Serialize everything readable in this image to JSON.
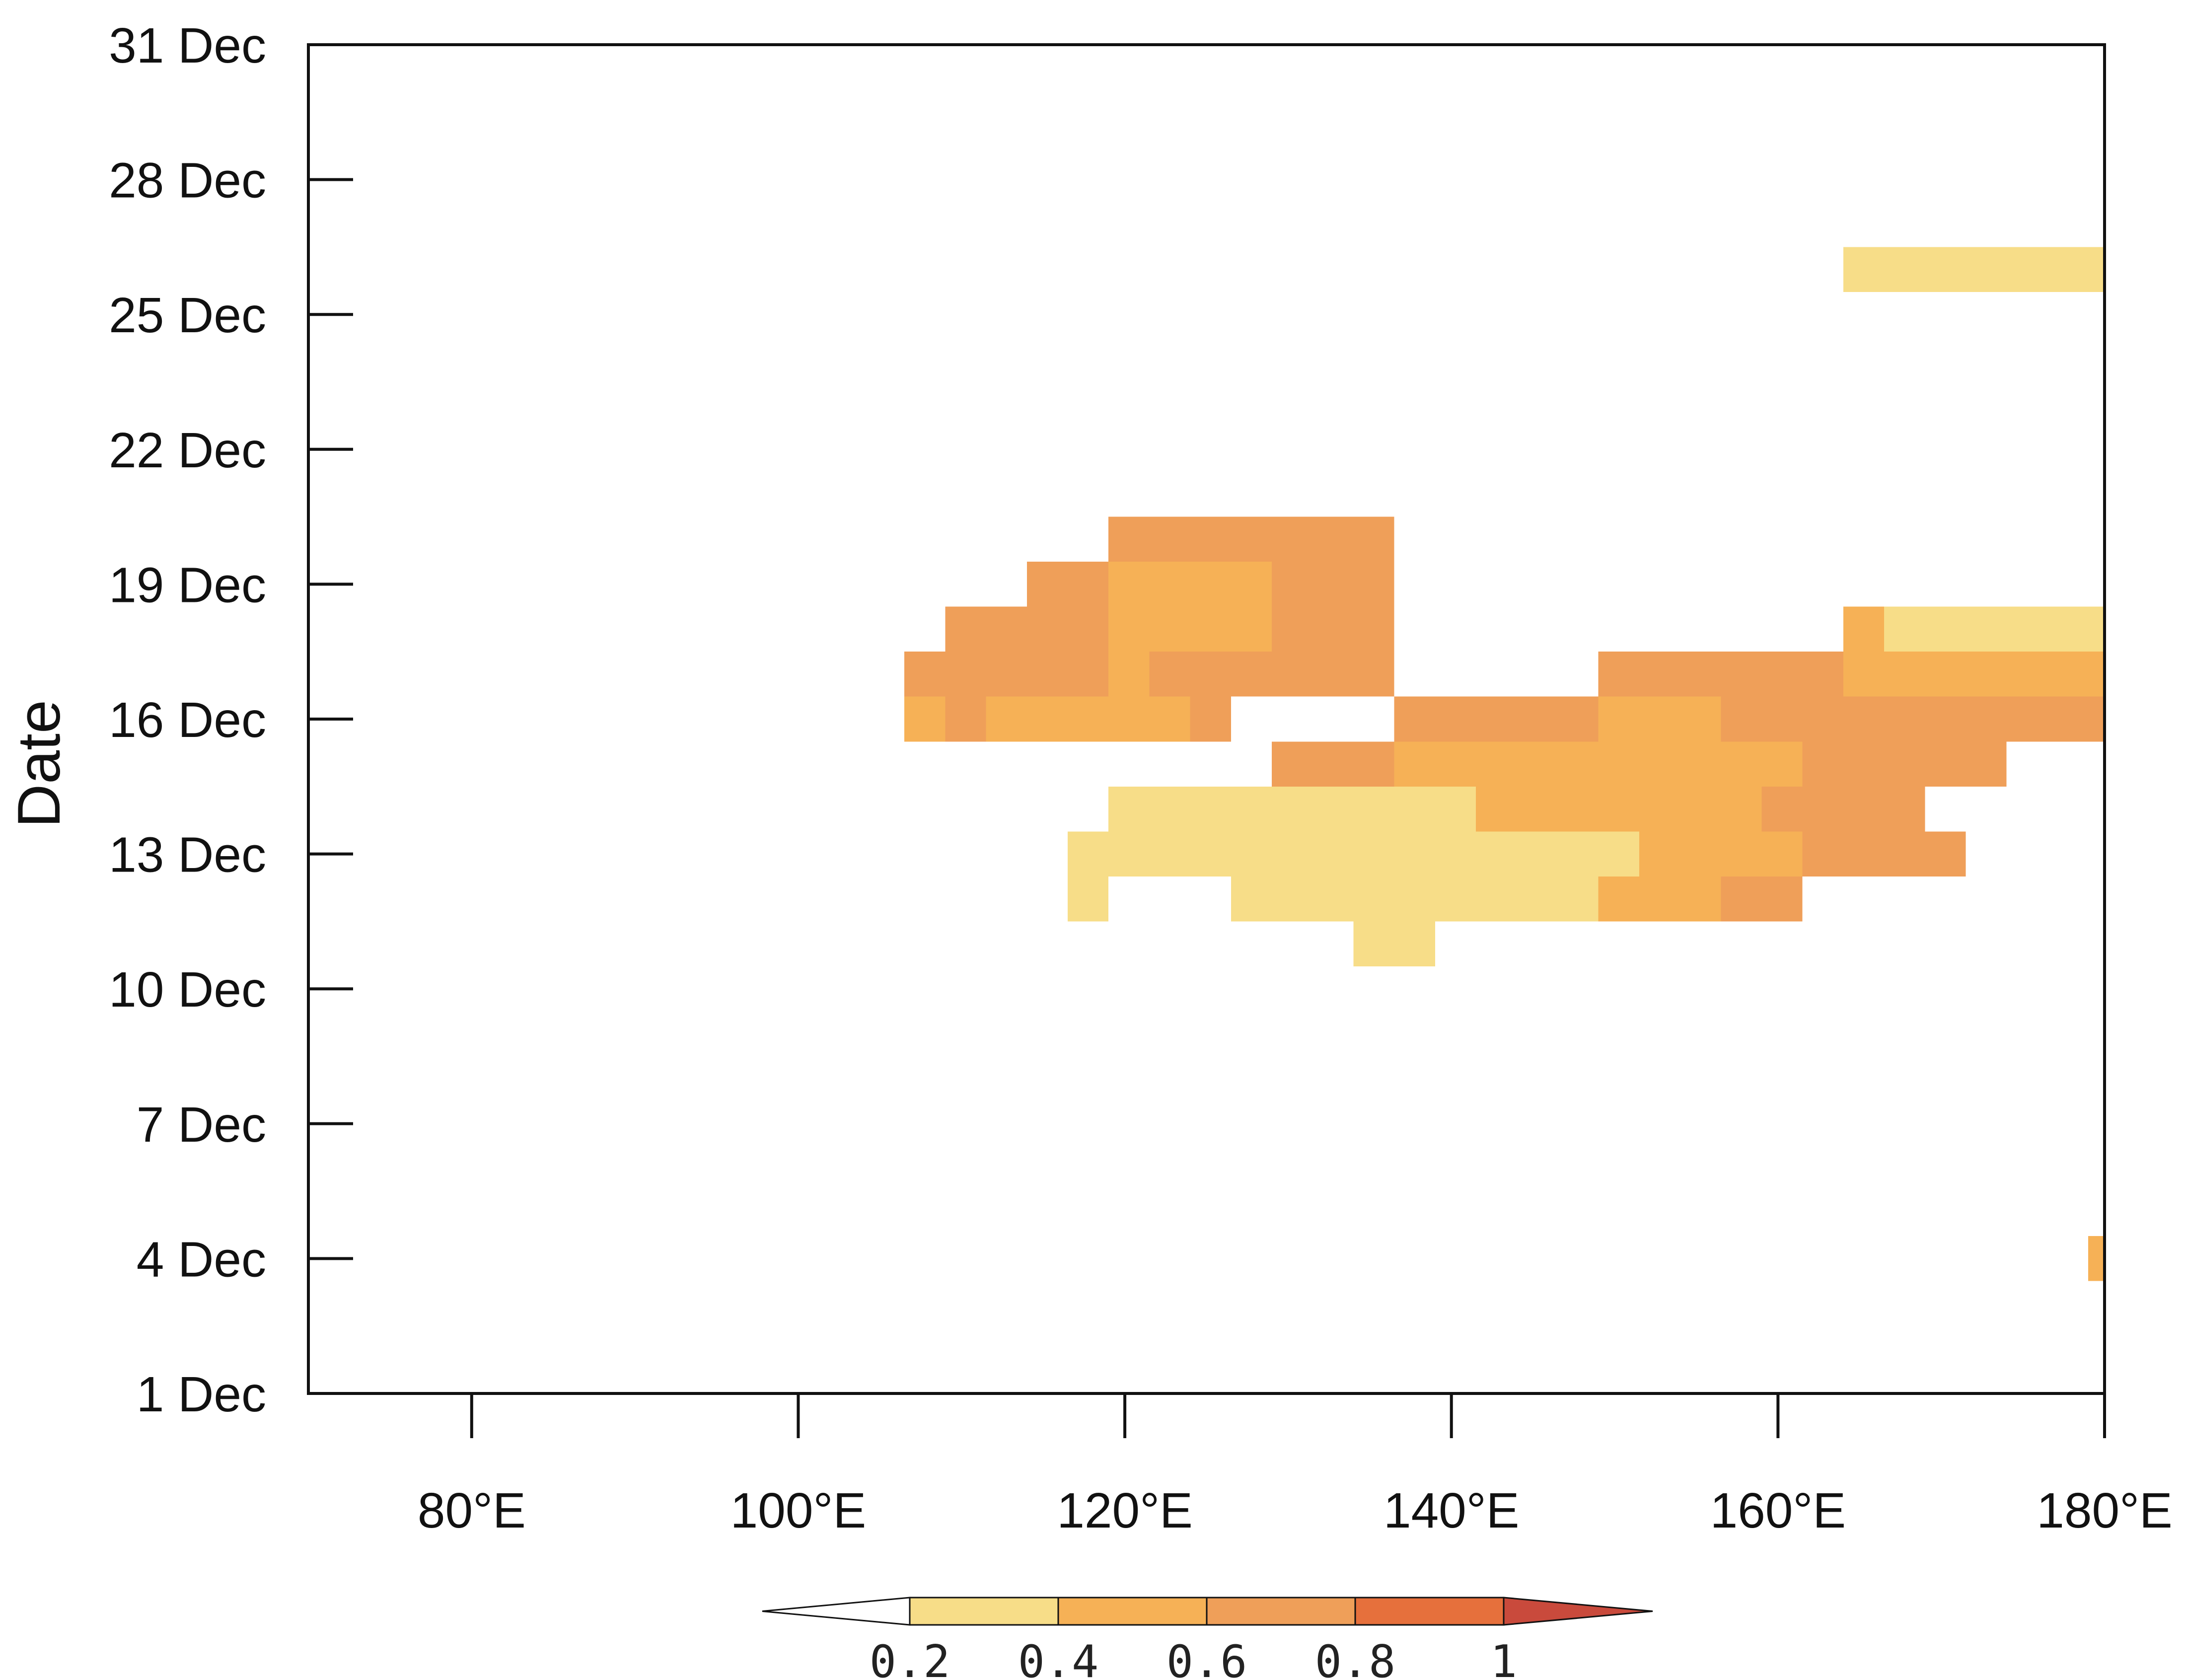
{
  "chart_data": {
    "type": "heatmap",
    "title": "",
    "xlabel": "",
    "ylabel": "Date",
    "x_unit": "degrees E",
    "xlim": [
      70,
      180
    ],
    "x_ticks": [
      {
        "value": 80,
        "label": "80°E"
      },
      {
        "value": 100,
        "label": "100°E"
      },
      {
        "value": 120,
        "label": "120°E"
      },
      {
        "value": 140,
        "label": "140°E"
      },
      {
        "value": 160,
        "label": "160°E"
      },
      {
        "value": 180,
        "label": "180°E"
      }
    ],
    "ylim": [
      "1 Dec",
      "31 Dec"
    ],
    "y_ticks": [
      {
        "value": 1,
        "label": "1 Dec"
      },
      {
        "value": 4,
        "label": "4 Dec"
      },
      {
        "value": 7,
        "label": "7 Dec"
      },
      {
        "value": 10,
        "label": "10 Dec"
      },
      {
        "value": 13,
        "label": "13 Dec"
      },
      {
        "value": 16,
        "label": "16 Dec"
      },
      {
        "value": 19,
        "label": "19 Dec"
      },
      {
        "value": 22,
        "label": "22 Dec"
      },
      {
        "value": 25,
        "label": "25 Dec"
      },
      {
        "value": 28,
        "label": "28 Dec"
      },
      {
        "value": 31,
        "label": "31 Dec"
      }
    ],
    "grid": false,
    "legend": "colorbar-bottom",
    "colorbar": {
      "levels": [
        "0.2",
        "0.4",
        "0.6",
        "0.8",
        "1"
      ],
      "colors": [
        "#ffffff",
        "#f7dd88",
        "#f6b156",
        "#ef9f59",
        "#e6703c",
        "#c94a3c"
      ]
    },
    "cells": [
      {
        "lon_start": 164,
        "lon_end": 180,
        "day": 26,
        "bin": 1
      },
      {
        "lon_start": 119,
        "lon_end": 136.5,
        "day": 20,
        "bin": 3
      },
      {
        "lon_start": 114,
        "lon_end": 119,
        "day": 19,
        "bin": 3
      },
      {
        "lon_start": 119,
        "lon_end": 129,
        "day": 19,
        "bin": 2
      },
      {
        "lon_start": 129,
        "lon_end": 136.5,
        "day": 19,
        "bin": 3
      },
      {
        "lon_start": 109,
        "lon_end": 119,
        "day": 18,
        "bin": 3
      },
      {
        "lon_start": 119,
        "lon_end": 129,
        "day": 18,
        "bin": 2
      },
      {
        "lon_start": 129,
        "lon_end": 136.5,
        "day": 18,
        "bin": 3
      },
      {
        "lon_start": 164,
        "lon_end": 166.5,
        "day": 18,
        "bin": 2
      },
      {
        "lon_start": 166.5,
        "lon_end": 180,
        "day": 18,
        "bin": 1
      },
      {
        "lon_start": 106.5,
        "lon_end": 119,
        "day": 17,
        "bin": 3
      },
      {
        "lon_start": 119,
        "lon_end": 121.5,
        "day": 17,
        "bin": 2
      },
      {
        "lon_start": 121.5,
        "lon_end": 136.5,
        "day": 17,
        "bin": 3
      },
      {
        "lon_start": 149,
        "lon_end": 164,
        "day": 17,
        "bin": 3
      },
      {
        "lon_start": 164,
        "lon_end": 180,
        "day": 17,
        "bin": 2
      },
      {
        "lon_start": 106.5,
        "lon_end": 109,
        "day": 16,
        "bin": 2
      },
      {
        "lon_start": 109,
        "lon_end": 111.5,
        "day": 16,
        "bin": 3
      },
      {
        "lon_start": 111.5,
        "lon_end": 124,
        "day": 16,
        "bin": 2
      },
      {
        "lon_start": 124,
        "lon_end": 126.5,
        "day": 16,
        "bin": 3
      },
      {
        "lon_start": 136.5,
        "lon_end": 149,
        "day": 16,
        "bin": 3
      },
      {
        "lon_start": 149,
        "lon_end": 156.5,
        "day": 16,
        "bin": 2
      },
      {
        "lon_start": 156.5,
        "lon_end": 180,
        "day": 16,
        "bin": 3
      },
      {
        "lon_start": 129,
        "lon_end": 136.5,
        "day": 15,
        "bin": 3
      },
      {
        "lon_start": 136.5,
        "lon_end": 161.5,
        "day": 15,
        "bin": 2
      },
      {
        "lon_start": 161.5,
        "lon_end": 174,
        "day": 15,
        "bin": 3
      },
      {
        "lon_start": 119,
        "lon_end": 141.5,
        "day": 14,
        "bin": 1
      },
      {
        "lon_start": 141.5,
        "lon_end": 159,
        "day": 14,
        "bin": 2
      },
      {
        "lon_start": 159,
        "lon_end": 169,
        "day": 14,
        "bin": 3
      },
      {
        "lon_start": 116.5,
        "lon_end": 151.5,
        "day": 13,
        "bin": 1
      },
      {
        "lon_start": 151.5,
        "lon_end": 161.5,
        "day": 13,
        "bin": 2
      },
      {
        "lon_start": 161.5,
        "lon_end": 171.5,
        "day": 13,
        "bin": 3
      },
      {
        "lon_start": 116.5,
        "lon_end": 119,
        "day": 12,
        "bin": 1
      },
      {
        "lon_start": 126.5,
        "lon_end": 149,
        "day": 12,
        "bin": 1
      },
      {
        "lon_start": 149,
        "lon_end": 156.5,
        "day": 12,
        "bin": 2
      },
      {
        "lon_start": 156.5,
        "lon_end": 161.5,
        "day": 12,
        "bin": 3
      },
      {
        "lon_start": 134,
        "lon_end": 139,
        "day": 11,
        "bin": 1
      },
      {
        "lon_start": 179,
        "lon_end": 180,
        "day": 4,
        "bin": 2
      }
    ]
  }
}
